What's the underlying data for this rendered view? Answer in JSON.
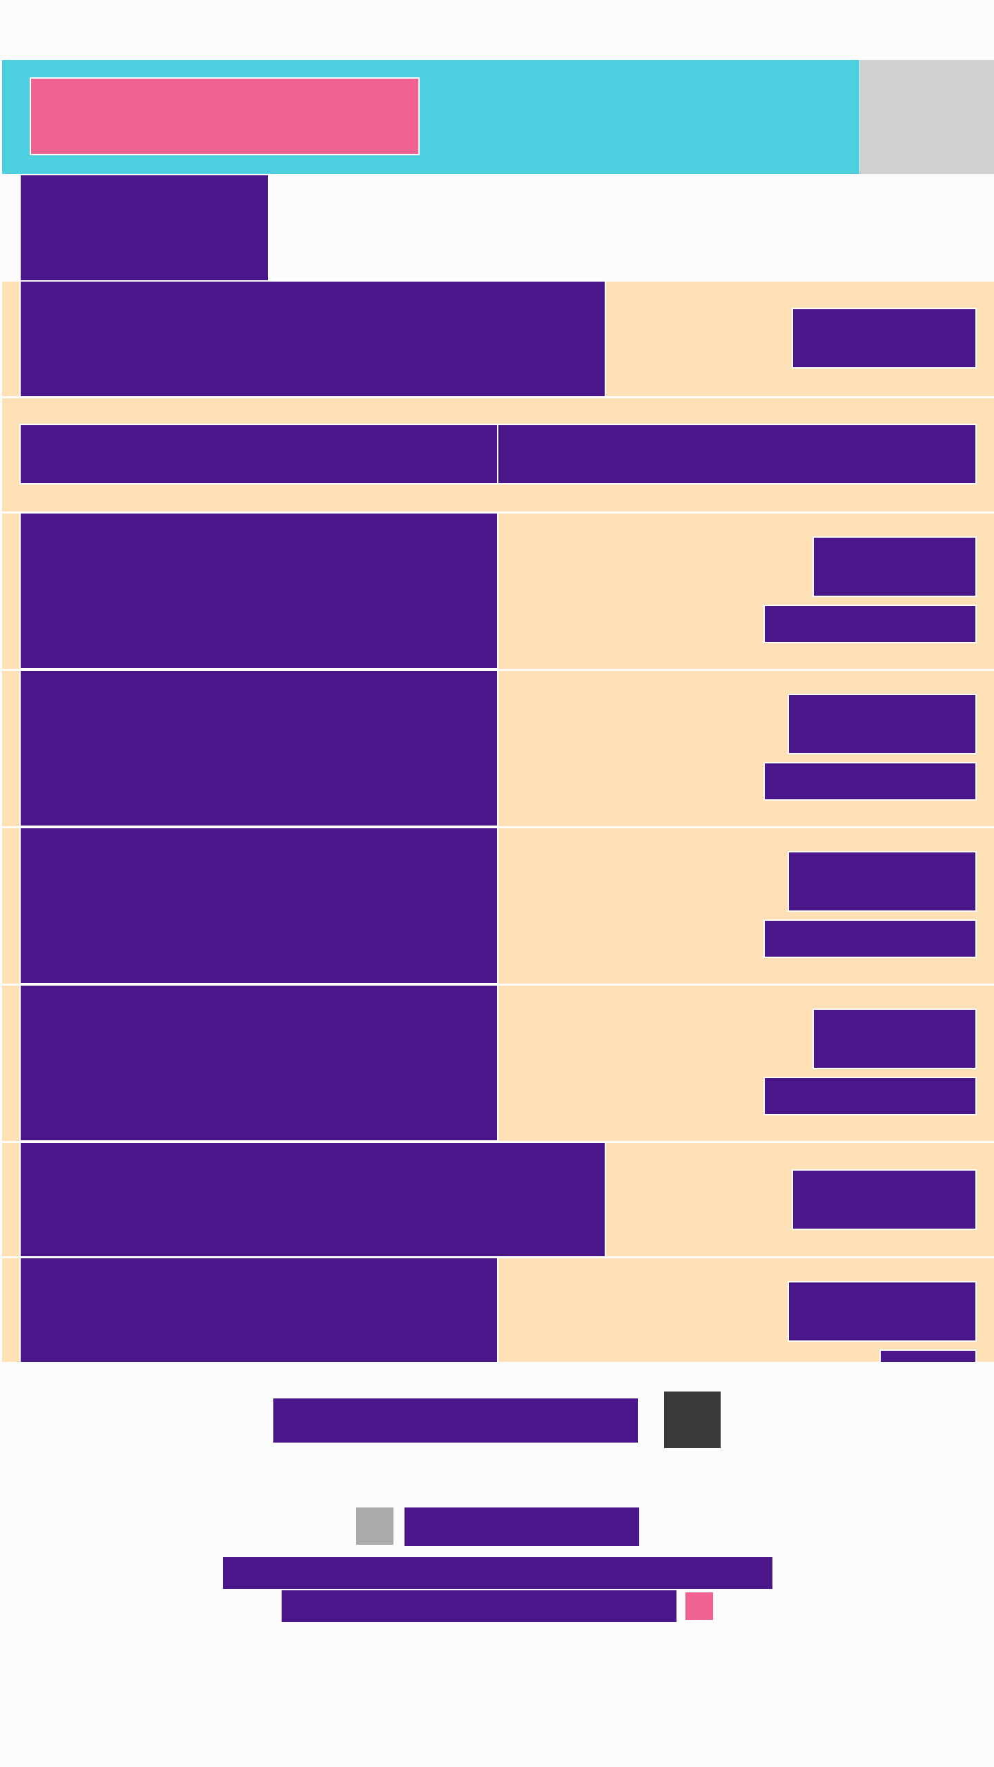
{
  "colors": {
    "header_bg": "#4ecfe0",
    "logo_bg": "#f06391",
    "corner_bg": "#d0d0d0",
    "content_block": "#4a168a",
    "row_bg": "#fde0b5",
    "page_bg": "#fcfcfc",
    "dark_button": "#3a3a3a",
    "grey_square": "#aaaaaa",
    "pink_square": "#f06391"
  },
  "header": {
    "logo": "",
    "corner_button": ""
  },
  "section_title": "",
  "first_row": {
    "label": "",
    "value": ""
  },
  "two_column_header": {
    "left": "",
    "right": ""
  },
  "rows": [
    {
      "label": "",
      "value": "",
      "sub": ""
    },
    {
      "label": "",
      "value": "",
      "sub": ""
    },
    {
      "label": "",
      "value": "",
      "sub": ""
    },
    {
      "label": "",
      "value": "",
      "sub": ""
    }
  ],
  "sixth_row": {
    "label": "",
    "value": ""
  },
  "last_row": {
    "label": "",
    "value": "",
    "sub": ""
  },
  "footer": {
    "load_more": "",
    "links": [
      "",
      "",
      ""
    ]
  }
}
